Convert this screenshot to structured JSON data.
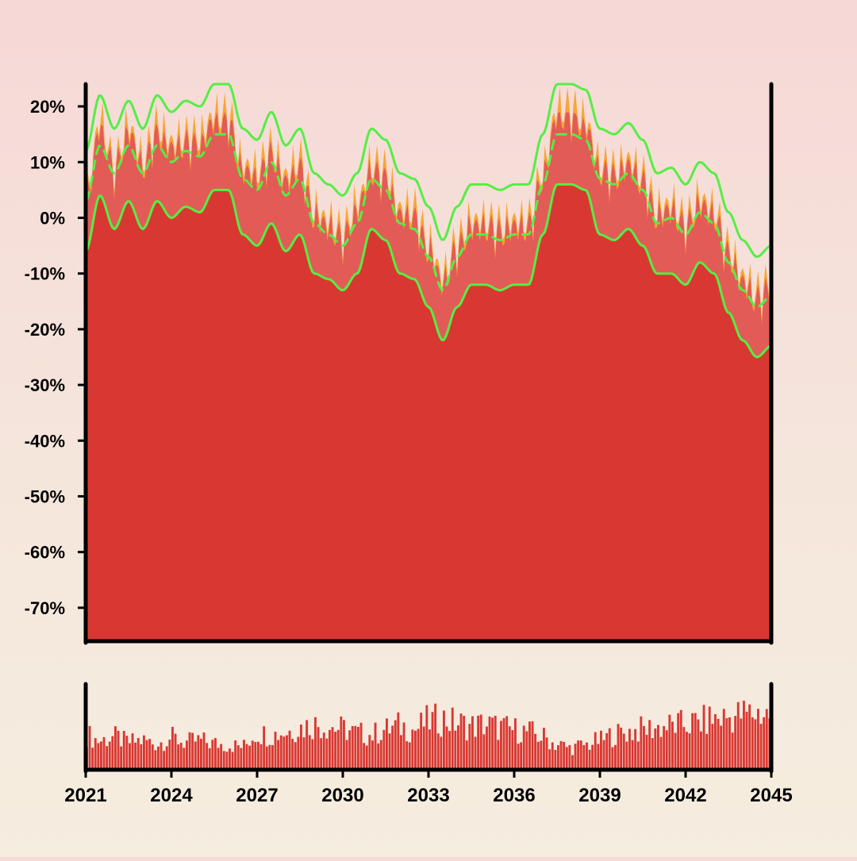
{
  "chart_data": [
    {
      "type": "area",
      "panel": "main",
      "y_ticks": [
        20,
        10,
        0,
        -10,
        -20,
        -30,
        -40,
        -50,
        -60,
        -70
      ],
      "y_tick_labels": [
        "20%",
        "10%",
        "0%",
        "-10%",
        "-20%",
        "-30%",
        "-40%",
        "-50%",
        "-60%",
        "-70%"
      ],
      "ylim": [
        -76,
        24
      ],
      "xlim": [
        2021,
        2045
      ],
      "grid": false,
      "colors": {
        "fill": "#d93832",
        "band_fill": "#e25b57",
        "spike_fill": "#f7a534",
        "line": "#55ee44",
        "axis": "#000000"
      },
      "x": [
        2021.0,
        2021.5,
        2022.0,
        2022.5,
        2023.0,
        2023.5,
        2024.0,
        2024.5,
        2025.0,
        2025.5,
        2026.0,
        2026.5,
        2027.0,
        2027.5,
        2028.0,
        2028.5,
        2029.0,
        2029.5,
        2030.0,
        2030.5,
        2031.0,
        2031.5,
        2032.0,
        2032.5,
        2033.0,
        2033.5,
        2034.0,
        2034.5,
        2035.0,
        2035.5,
        2036.0,
        2036.5,
        2037.0,
        2037.5,
        2038.0,
        2038.5,
        2039.0,
        2039.5,
        2040.0,
        2040.5,
        2041.0,
        2041.5,
        2042.0,
        2042.5,
        2043.0,
        2043.5,
        2044.0,
        2044.5,
        2045.0
      ],
      "series": [
        {
          "role": "upper_band",
          "style": "solid",
          "values": [
            12,
            22,
            16,
            21,
            16,
            22,
            19,
            21,
            20,
            24,
            24,
            16,
            14,
            19,
            13,
            16,
            8,
            6,
            4,
            8,
            16,
            14,
            8,
            7,
            2,
            -4,
            2,
            6,
            6,
            5,
            6,
            6,
            15,
            24,
            24,
            23,
            16,
            15,
            17,
            14,
            8,
            9,
            6,
            10,
            8,
            1,
            -4,
            -7,
            -5
          ]
        },
        {
          "role": "middle",
          "style": "dashed",
          "values": [
            3,
            13,
            8,
            13,
            8,
            13,
            10,
            12,
            11,
            15,
            15,
            7,
            5,
            10,
            4,
            7,
            -1,
            -3,
            -5,
            -1,
            7,
            5,
            -1,
            -2,
            -7,
            -13,
            -7,
            -3,
            -3,
            -4,
            -3,
            -3,
            6,
            15,
            15,
            14,
            7,
            6,
            8,
            5,
            -1,
            0,
            -3,
            1,
            -1,
            -8,
            -13,
            -16,
            -14
          ]
        },
        {
          "role": "lower_band",
          "style": "solid",
          "values": [
            -6,
            4,
            -2,
            3,
            -2,
            3,
            0,
            2,
            1,
            5,
            5,
            -3,
            -5,
            -1,
            -6,
            -3,
            -10,
            -11,
            -13,
            -10,
            -2,
            -4,
            -10,
            -11,
            -16,
            -22,
            -16,
            -12,
            -12,
            -13,
            -12,
            -12,
            -3,
            6,
            6,
            5,
            -3,
            -4,
            -2,
            -5,
            -10,
            -10,
            -12,
            -8,
            -10,
            -17,
            -22,
            -25,
            -23
          ]
        },
        {
          "role": "spikes",
          "style": "area",
          "values": [
            4,
            18,
            10,
            17,
            11,
            17,
            14,
            15,
            15,
            19,
            19,
            10,
            9,
            13,
            8,
            11,
            2,
            0,
            -2,
            3,
            10,
            9,
            2,
            2,
            -4,
            -10,
            -4,
            0,
            0,
            -1,
            0,
            0,
            9,
            20,
            20,
            18,
            10,
            9,
            11,
            8,
            2,
            3,
            0,
            4,
            2,
            -5,
            -10,
            -13,
            -11
          ]
        }
      ]
    },
    {
      "type": "bar",
      "panel": "volume",
      "x_ticks": [
        2021,
        2024,
        2027,
        2030,
        2033,
        2036,
        2039,
        2042,
        2045
      ],
      "x_tick_labels": [
        "2021",
        "2024",
        "2027",
        "2030",
        "2033",
        "2036",
        "2039",
        "2042",
        "2045"
      ],
      "xlim": [
        2021,
        2045
      ],
      "ylim": [
        0,
        1
      ],
      "colors": {
        "bar": "#d93832"
      },
      "bar_count": 240,
      "envelope": [
        0.48,
        0.4,
        0.45,
        0.38,
        0.4,
        0.36,
        0.44,
        0.38,
        0.4,
        0.36,
        0.34,
        0.32,
        0.5,
        0.48,
        0.52,
        0.58,
        0.62,
        0.6,
        0.56,
        0.5,
        0.48,
        0.55,
        0.6,
        0.55,
        0.66,
        0.7,
        0.64,
        0.6,
        0.62,
        0.58,
        0.55,
        0.52,
        0.45,
        0.35,
        0.3,
        0.34,
        0.4,
        0.48,
        0.52,
        0.55,
        0.58,
        0.6,
        0.62,
        0.65,
        0.7,
        0.72,
        0.76,
        0.78,
        0.76
      ]
    }
  ]
}
